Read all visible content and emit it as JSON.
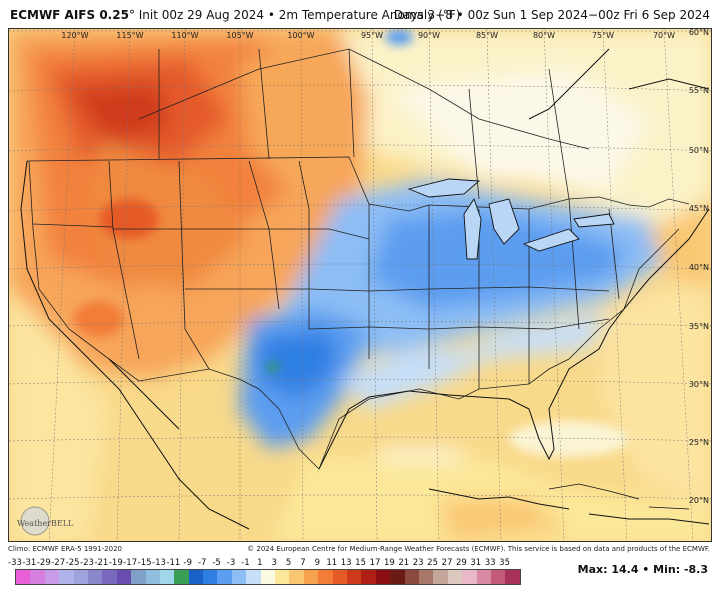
{
  "header": {
    "model": "ECMWF AIFS 0.25",
    "degree_mark": "°",
    "init": " Init 00z 29 Aug 2024 • 2m Temperature Anomaly (°F)",
    "valid": "Days 3−8 • 00z Sun 1 Sep 2024−00z Fri 6 Sep 2024"
  },
  "map": {
    "lat_labels": [
      "60°N",
      "55°N",
      "50°N",
      "45°N",
      "40°N",
      "35°N",
      "30°N",
      "25°N",
      "20°N"
    ],
    "lon_labels": [
      "120°W",
      "115°W",
      "110°W",
      "105°W",
      "100°W",
      "95°W",
      "90°W",
      "85°W",
      "80°W",
      "75°W",
      "70°W"
    ],
    "watermark": "WeatherBELL"
  },
  "footer": {
    "climo": "Climo: ECMWF ERA-5 1991-2020",
    "copyright": "© 2024 European Centre for Medium-Range Weather Forecasts (ECMWF). This service is based on data and products of the ECMWF.",
    "max_label": "Max: 14.4 • Min: -8.3",
    "scale_values": [
      "-33",
      "-31",
      "-29",
      "-27",
      "-25",
      "-23",
      "-21",
      "-19",
      "-17",
      "-15",
      "-13",
      "-11",
      "-9",
      "-7",
      "-5",
      "-3",
      "-1",
      "1",
      "3",
      "5",
      "7",
      "9",
      "11",
      "13",
      "15",
      "17",
      "19",
      "21",
      "23",
      "25",
      "27",
      "29",
      "31",
      "33",
      "35"
    ],
    "scale_colors": [
      "#e85fd8",
      "#d67fe0",
      "#c79be8",
      "#b2b2ea",
      "#9fa3dd",
      "#8a86cc",
      "#7a68bf",
      "#6a4db1",
      "#7fa0c8",
      "#8fbddb",
      "#a1d7ea",
      "#3a9e55",
      "#1a62c9",
      "#2f7fe3",
      "#5b9df0",
      "#8cbdf5",
      "#c6def8",
      "#fbfbe2",
      "#fbe89a",
      "#f9c772",
      "#f7a24f",
      "#f27c38",
      "#e65a25",
      "#cf3a1c",
      "#b01f16",
      "#8a0e12",
      "#6b1a14",
      "#8c4a3e",
      "#a8796b",
      "#c5a69a",
      "#ddc8c0",
      "#e9b9c8",
      "#d98aa3",
      "#c25a7a",
      "#a83157"
    ]
  }
}
